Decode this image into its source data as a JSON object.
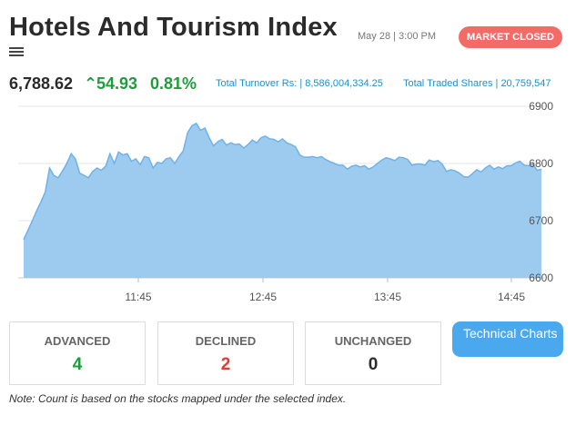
{
  "header": {
    "title": "Hotels And Tourism Index",
    "datetime": "May 28 | 3:00 PM",
    "status": "MARKET CLOSED",
    "menu_icon": "hamburger-menu-icon"
  },
  "quote": {
    "price": "6,788.62",
    "change": "54.93",
    "change_arrow": "^",
    "percent": "0.81%",
    "turnover_label": "Total Turnover Rs:",
    "turnover_value": "8,586,004,334.25",
    "shares_label": "Total Traded Shares",
    "shares_value": "20,759,547"
  },
  "colors": {
    "positive": "#1e9c3b",
    "negative": "#e33b33",
    "accent": "#4aa8ef",
    "badge": "#f26b66",
    "area": "#9dcbf0"
  },
  "chart_data": {
    "type": "area",
    "ylim": [
      6600,
      6900
    ],
    "yticks": [
      "6900",
      "6800",
      "6700",
      "6600"
    ],
    "xticks": [
      "11:45",
      "12:45",
      "13:45",
      "14:45"
    ],
    "grid": "horizontal",
    "series": [
      {
        "values": [
          6667,
          6683,
          6700,
          6717,
          6733,
          6750,
          6792,
          6779,
          6775,
          6787,
          6800,
          6817,
          6808,
          6783,
          6779,
          6775,
          6786,
          6792,
          6788,
          6795,
          6817,
          6800,
          6820,
          6815,
          6817,
          6804,
          6808,
          6798,
          6812,
          6810,
          6792,
          6802,
          6800,
          6808,
          6810,
          6800,
          6812,
          6822,
          6854,
          6866,
          6870,
          6858,
          6862,
          6845,
          6831,
          6838,
          6842,
          6832,
          6836,
          6833,
          6834,
          6827,
          6833,
          6841,
          6836,
          6845,
          6848,
          6843,
          6842,
          6838,
          6843,
          6836,
          6833,
          6829,
          6815,
          6811,
          6811,
          6812,
          6810,
          6812,
          6807,
          6803,
          6800,
          6797,
          6797,
          6790,
          6795,
          6797,
          6794,
          6796,
          6790,
          6794,
          6800,
          6806,
          6810,
          6808,
          6805,
          6811,
          6810,
          6807,
          6797,
          6799,
          6799,
          6797,
          6806,
          6803,
          6805,
          6799,
          6786,
          6789,
          6787,
          6783,
          6777,
          6776,
          6782,
          6789,
          6785,
          6792,
          6797,
          6790,
          6794,
          6791,
          6796,
          6796,
          6801,
          6804,
          6797,
          6796,
          6799,
          6788,
          6790
        ]
      }
    ]
  },
  "stats": {
    "advanced_label": "ADVANCED",
    "advanced_value": "4",
    "declined_label": "DECLINED",
    "declined_value": "2",
    "unchanged_label": "UNCHANGED",
    "unchanged_value": "0"
  },
  "tech_button": "Technical Charts",
  "note": "Note: Count is based on the stocks mapped under the selected index."
}
